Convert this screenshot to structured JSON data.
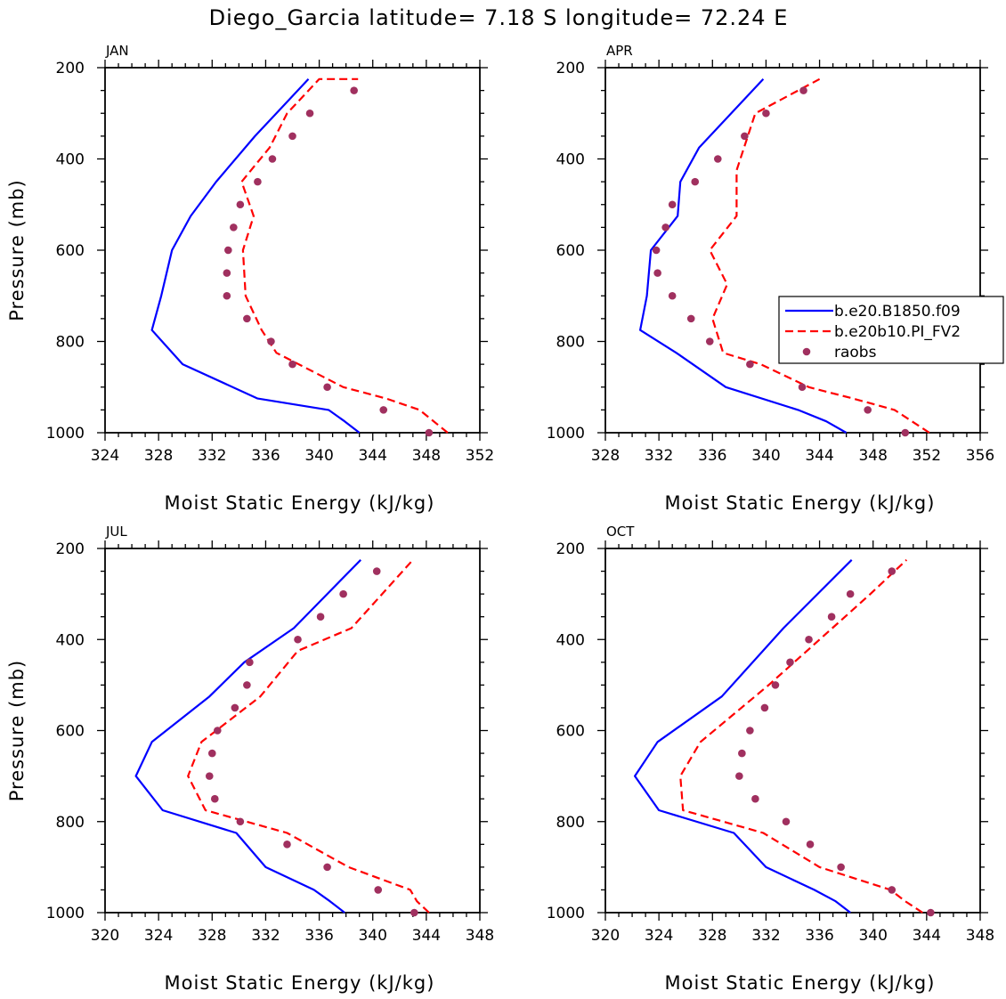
{
  "title": "Diego_Garcia  latitude= 7.18 S longitude= 72.24 E",
  "legend": [
    {
      "label": "b.e20.B1850.f09",
      "color": "#0000ff",
      "style": "solid"
    },
    {
      "label": "b.e20b10.PI_FV2",
      "color": "#ff0000",
      "style": "dashed"
    },
    {
      "label": "raobs",
      "color": "#a0305f",
      "style": "dot"
    }
  ],
  "chart_data": [
    {
      "type": "line",
      "panel": "JAN",
      "xlabel": "Moist Static Energy (kJ/kg)",
      "ylabel": "Pressure (mb)",
      "xlim": [
        324,
        352
      ],
      "xticks": [
        324,
        328,
        332,
        336,
        340,
        344,
        348,
        352
      ],
      "ylim": [
        200,
        1000
      ],
      "yticks": [
        200,
        400,
        600,
        800,
        1000
      ],
      "y_inverted": true,
      "series": [
        {
          "name": "b.e20.B1850.f09",
          "x": [
            343.0,
            341.9,
            340.7,
            335.4,
            329.8,
            327.5,
            328.2,
            329.0,
            330.4,
            332.3,
            335.2,
            339.2
          ],
          "y": [
            1000,
            975,
            950,
            925,
            850,
            775,
            700,
            600,
            525,
            450,
            350,
            225
          ]
        },
        {
          "name": "b.e20b10.PI_FV2",
          "x": [
            349.6,
            347.5,
            345.0,
            341.8,
            336.8,
            335.7,
            334.5,
            334.3,
            335.1,
            334.2,
            336.3,
            337.6,
            340.0,
            342.9
          ],
          "y": [
            1000,
            950,
            925,
            900,
            825,
            775,
            700,
            600,
            525,
            450,
            375,
            300,
            225,
            225
          ]
        },
        {
          "name": "raobs",
          "x": [
            348.2,
            344.8,
            340.6,
            338.0,
            336.4,
            334.6,
            333.1,
            333.1,
            333.2,
            333.6,
            334.1,
            335.4,
            336.5,
            338.0,
            339.3,
            342.6
          ],
          "y": [
            1000,
            950,
            900,
            850,
            800,
            750,
            700,
            650,
            600,
            550,
            500,
            450,
            400,
            350,
            300,
            250
          ]
        }
      ]
    },
    {
      "type": "line",
      "panel": "APR",
      "xlabel": "Moist Static Energy (kJ/kg)",
      "ylabel": "",
      "xlim": [
        328,
        356
      ],
      "xticks": [
        328,
        332,
        336,
        340,
        344,
        348,
        352,
        356
      ],
      "ylim": [
        200,
        1000
      ],
      "yticks": [
        200,
        400,
        600,
        800,
        1000
      ],
      "y_inverted": true,
      "series": [
        {
          "name": "b.e20.B1850.f09",
          "x": [
            346.0,
            344.5,
            342.4,
            337.0,
            333.3,
            330.6,
            331.1,
            331.4,
            333.4,
            333.6,
            335.0,
            339.8
          ],
          "y": [
            1000,
            975,
            950,
            900,
            825,
            775,
            700,
            600,
            525,
            450,
            375,
            225
          ]
        },
        {
          "name": "b.e20b10.PI_FV2",
          "x": [
            352.2,
            349.6,
            346.5,
            343.2,
            339.6,
            336.8,
            336.0,
            337.1,
            335.8,
            337.8,
            337.8,
            339.2,
            344.0
          ],
          "y": [
            1000,
            950,
            925,
            900,
            850,
            825,
            750,
            675,
            600,
            525,
            425,
            300,
            225
          ]
        },
        {
          "name": "raobs",
          "x": [
            350.4,
            347.6,
            342.7,
            338.8,
            335.8,
            334.4,
            333.0,
            331.9,
            331.8,
            332.5,
            333.0,
            334.7,
            336.4,
            338.4,
            340.0,
            342.8
          ],
          "y": [
            1000,
            950,
            900,
            850,
            800,
            750,
            700,
            650,
            600,
            550,
            500,
            450,
            400,
            350,
            300,
            250
          ]
        }
      ]
    },
    {
      "type": "line",
      "panel": "JUL",
      "xlabel": "Moist Static Energy (kJ/kg)",
      "ylabel": "Pressure (mb)",
      "xlim": [
        320,
        348
      ],
      "xticks": [
        320,
        324,
        328,
        332,
        336,
        340,
        344,
        348
      ],
      "ylim": [
        200,
        1000
      ],
      "yticks": [
        200,
        400,
        600,
        800,
        1000
      ],
      "y_inverted": true,
      "series": [
        {
          "name": "b.e20.B1850.f09",
          "x": [
            337.9,
            336.8,
            335.6,
            332.0,
            329.8,
            324.3,
            322.3,
            323.5,
            327.8,
            330.4,
            334.1,
            339.1
          ],
          "y": [
            1000,
            975,
            950,
            900,
            825,
            775,
            700,
            625,
            525,
            450,
            375,
            225
          ]
        },
        {
          "name": "b.e20b10.PI_FV2",
          "x": [
            344.2,
            343.3,
            342.8,
            338.2,
            333.6,
            327.5,
            326.2,
            327.2,
            331.6,
            334.4,
            338.4,
            343.0
          ],
          "y": [
            1000,
            975,
            950,
            900,
            825,
            775,
            700,
            625,
            525,
            425,
            375,
            225
          ]
        },
        {
          "name": "raobs",
          "x": [
            343.1,
            340.4,
            336.6,
            333.6,
            330.1,
            328.2,
            327.8,
            328.0,
            328.4,
            329.7,
            330.6,
            330.8,
            334.4,
            336.1,
            337.8,
            340.3
          ],
          "y": [
            1000,
            950,
            900,
            850,
            800,
            750,
            700,
            650,
            600,
            550,
            500,
            450,
            400,
            350,
            300,
            250
          ]
        }
      ]
    },
    {
      "type": "line",
      "panel": "OCT",
      "xlabel": "Moist Static Energy (kJ/kg)",
      "ylabel": "",
      "xlim": [
        320,
        348
      ],
      "xticks": [
        320,
        324,
        328,
        332,
        336,
        340,
        344,
        348
      ],
      "ylim": [
        200,
        1000
      ],
      "yticks": [
        200,
        400,
        600,
        800,
        1000
      ],
      "y_inverted": true,
      "series": [
        {
          "name": "b.e20.B1850.f09",
          "x": [
            338.3,
            337.2,
            335.6,
            332.0,
            329.6,
            324.0,
            322.2,
            323.9,
            328.7,
            333.3,
            338.4
          ],
          "y": [
            1000,
            975,
            950,
            900,
            825,
            775,
            700,
            625,
            525,
            375,
            225
          ]
        },
        {
          "name": "b.e20b10.PI_FV2",
          "x": [
            343.7,
            342.4,
            341.3,
            336.0,
            331.8,
            325.8,
            325.6,
            327.1,
            332.2,
            336.0,
            339.8,
            342.5
          ],
          "y": [
            1000,
            975,
            950,
            900,
            825,
            775,
            700,
            625,
            500,
            400,
            300,
            225
          ]
        },
        {
          "name": "raobs",
          "x": [
            344.3,
            341.4,
            337.6,
            335.3,
            333.5,
            331.2,
            330.0,
            330.2,
            330.8,
            331.9,
            332.7,
            333.8,
            335.2,
            336.9,
            338.3,
            341.4
          ],
          "y": [
            1000,
            950,
            900,
            850,
            800,
            750,
            700,
            650,
            600,
            550,
            500,
            450,
            400,
            350,
            300,
            250
          ]
        }
      ]
    }
  ]
}
